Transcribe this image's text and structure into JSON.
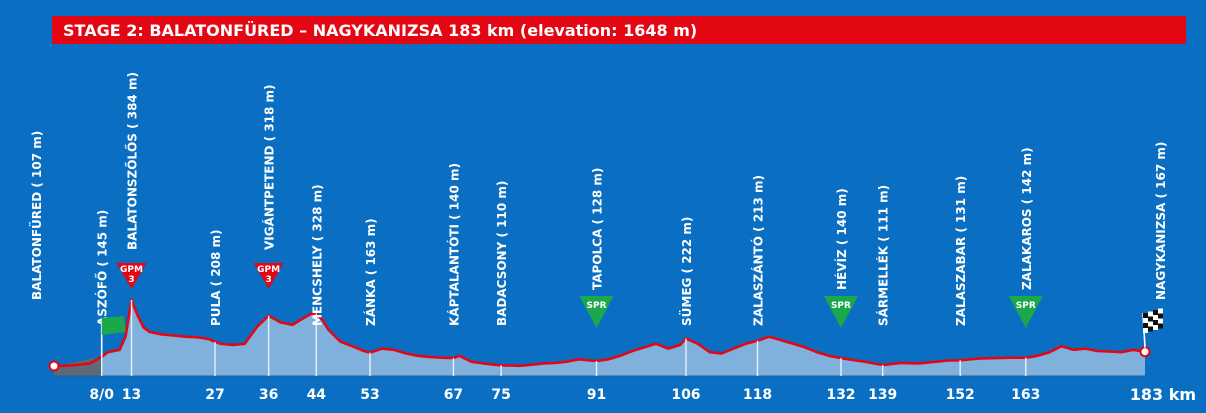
{
  "title": "STAGE 2: BALATONFÜRED – NAGYKANIZSA 183 km (elevation: 1648 m)",
  "colors": {
    "background": "#0a6fc2",
    "title_bar": "#e30613",
    "profile_fill": "#7fb1dc",
    "profile_line": "#e30613",
    "sprint": "#1aa84a",
    "gpm": "#e30613"
  },
  "chart_data": {
    "type": "area",
    "title": "STAGE 2: BALATONFÜRED – NAGYKANIZSA 183 km (elevation: 1648 m)",
    "xlabel": "",
    "ylabel": "",
    "xlim": [
      0,
      183
    ],
    "ylim": [
      100,
      400
    ],
    "grid": false,
    "unit": "km",
    "km_ticks": [
      "8/0",
      "13",
      "27",
      "36",
      "44",
      "53",
      "67",
      "75",
      "91",
      "106",
      "118",
      "132",
      "139",
      "152",
      "163"
    ],
    "km_end_label": "183 km",
    "profile": {
      "x": [
        0,
        3,
        6,
        8,
        9,
        11,
        12,
        13,
        14,
        15,
        16,
        18,
        20,
        22,
        24,
        26,
        27,
        28,
        30,
        32,
        34,
        36,
        38,
        40,
        41,
        42,
        43,
        44,
        45,
        46,
        48,
        50,
        52,
        53,
        55,
        57,
        59,
        61,
        63,
        65,
        67,
        68,
        70,
        72,
        75,
        78,
        80,
        82,
        84,
        86,
        88,
        90,
        91,
        93,
        95,
        97,
        99,
        101,
        103,
        105,
        106,
        108,
        110,
        112,
        114,
        116,
        118,
        120,
        122,
        124,
        126,
        128,
        130,
        132,
        134,
        136,
        139,
        142,
        145,
        148,
        150,
        152,
        155,
        158,
        161,
        163,
        165,
        167,
        169,
        171,
        173,
        175,
        177,
        179,
        181,
        183
      ],
      "y": [
        107,
        110,
        118,
        145,
        165,
        175,
        230,
        384,
        320,
        270,
        250,
        240,
        235,
        230,
        228,
        220,
        208,
        200,
        195,
        200,
        270,
        318,
        290,
        280,
        295,
        310,
        325,
        328,
        300,
        260,
        210,
        190,
        170,
        163,
        180,
        175,
        160,
        150,
        145,
        142,
        140,
        150,
        125,
        118,
        110,
        108,
        112,
        118,
        120,
        125,
        135,
        130,
        128,
        135,
        150,
        170,
        185,
        200,
        180,
        195,
        222,
        200,
        165,
        160,
        180,
        200,
        213,
        230,
        215,
        200,
        185,
        165,
        150,
        140,
        132,
        125,
        111,
        120,
        118,
        125,
        130,
        131,
        138,
        140,
        142,
        142,
        150,
        165,
        190,
        175,
        180,
        170,
        168,
        165,
        175,
        167
      ]
    },
    "locations": [
      {
        "km": 0,
        "name": "BALATONFÜRED ( 107 m)",
        "elev": 107,
        "marker": "start"
      },
      {
        "km": 8,
        "name": "ASZÓFŐ ( 145 m)",
        "elev": 145,
        "marker": "flag"
      },
      {
        "km": 13,
        "name": "BALATONSZŐLŐS ( 384 m)",
        "elev": 384,
        "marker": "gpm",
        "badge_top": "GPM",
        "badge_num": "3"
      },
      {
        "km": 27,
        "name": "PULA ( 208 m)",
        "elev": 208
      },
      {
        "km": 36,
        "name": "VIGÁNTPETEND ( 318 m)",
        "elev": 318,
        "marker": "gpm",
        "badge_top": "GPM",
        "badge_num": "3"
      },
      {
        "km": 44,
        "name": "MENCSHELY ( 328 m)",
        "elev": 328
      },
      {
        "km": 53,
        "name": "ZÁNKA ( 163 m)",
        "elev": 163
      },
      {
        "km": 67,
        "name": "KÁPTALANTÓTI ( 140 m)",
        "elev": 140
      },
      {
        "km": 75,
        "name": "BADACSONY ( 110 m)",
        "elev": 110
      },
      {
        "km": 91,
        "name": "TAPOLCA ( 128 m)",
        "elev": 128,
        "marker": "spr",
        "badge_top": "SPR"
      },
      {
        "km": 106,
        "name": "SÜMEG ( 222 m)",
        "elev": 222
      },
      {
        "km": 118,
        "name": "ZALASZÁNTÓ ( 213 m)",
        "elev": 213
      },
      {
        "km": 132,
        "name": "HÉVÍZ ( 140 m)",
        "elev": 140,
        "marker": "spr",
        "badge_top": "SPR"
      },
      {
        "km": 139,
        "name": "SÁRMELLÉK ( 111 m)",
        "elev": 111
      },
      {
        "km": 152,
        "name": "ZALASZABAR ( 131 m)",
        "elev": 131
      },
      {
        "km": 163,
        "name": "ZALAKAROS ( 142 m)",
        "elev": 142,
        "marker": "spr",
        "badge_top": "SPR"
      },
      {
        "km": 183,
        "name": "NAGYKANIZSA ( 167 m)",
        "elev": 167,
        "marker": "finish"
      }
    ]
  }
}
